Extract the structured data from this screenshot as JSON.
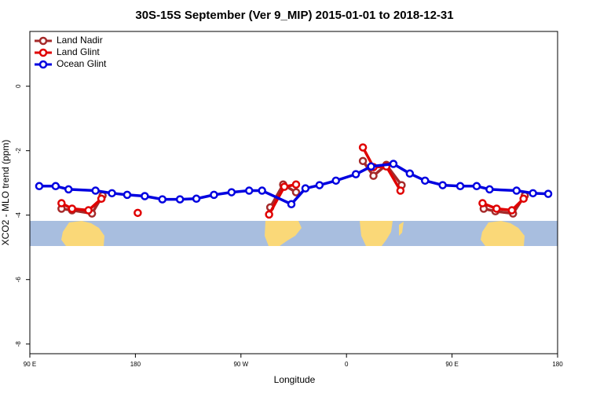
{
  "chart_data": {
    "type": "line",
    "title": "30S-15S September (Ver 9_MIP)   2015-01-01 to 2018-12-31",
    "xlabel": "Longitude",
    "ylabel": "XCO2 - MLO trend (ppm)",
    "xlim": [
      90,
      540
    ],
    "ylim": [
      -8.3,
      1.7
    ],
    "xticks": [
      {
        "value": 90,
        "label": "90 E"
      },
      {
        "value": 180,
        "label": "180"
      },
      {
        "value": 270,
        "label": "90 W"
      },
      {
        "value": 360,
        "label": "0"
      },
      {
        "value": 450,
        "label": "90 E"
      },
      {
        "value": 540,
        "label": "180"
      }
    ],
    "yticks": [
      0,
      -2,
      -4,
      -6,
      -8
    ],
    "legend": "top-left",
    "series": [
      {
        "name": "Land Nadir",
        "color": "#a52a2a",
        "x": [
          117,
          126,
          143,
          152,
          null,
          295,
          306,
          317,
          null,
          374,
          383,
          394,
          407,
          null,
          477,
          487,
          502,
          512
        ],
        "values": [
          -3.8,
          -3.85,
          -3.95,
          -3.39,
          null,
          -3.76,
          -3.05,
          -3.29,
          null,
          -2.32,
          -2.78,
          -2.44,
          -3.07,
          null,
          -3.8,
          -3.88,
          -3.95,
          -3.39
        ]
      },
      {
        "name": "Land Glint",
        "color": "#e00000",
        "x": [
          117,
          126,
          140,
          151,
          null,
          182,
          null,
          294,
          307,
          317,
          null,
          374,
          383,
          394,
          406,
          null,
          476,
          488,
          501,
          511
        ],
        "values": [
          -3.63,
          -3.8,
          -3.85,
          -3.49,
          null,
          -3.93,
          null,
          -3.98,
          -3.12,
          -3.05,
          null,
          -1.9,
          -2.51,
          -2.49,
          -3.24,
          null,
          -3.63,
          -3.8,
          -3.85,
          -3.49
        ]
      },
      {
        "name": "Ocean Glint",
        "color": "#0000e0",
        "x": [
          98,
          112,
          123,
          146,
          160,
          173,
          188,
          203,
          218,
          232,
          247,
          262,
          277,
          288,
          313,
          325,
          337,
          351,
          368,
          381,
          400,
          414,
          427,
          442,
          457,
          471,
          482,
          505,
          519,
          532
        ],
        "values": [
          -3.1,
          -3.1,
          -3.2,
          -3.24,
          -3.32,
          -3.37,
          -3.41,
          -3.51,
          -3.51,
          -3.49,
          -3.37,
          -3.29,
          -3.24,
          -3.24,
          -3.66,
          -3.17,
          -3.07,
          -2.93,
          -2.73,
          -2.49,
          -2.41,
          -2.71,
          -2.93,
          -3.07,
          -3.1,
          -3.1,
          -3.2,
          -3.24,
          -3.32,
          -3.34
        ]
      }
    ]
  }
}
